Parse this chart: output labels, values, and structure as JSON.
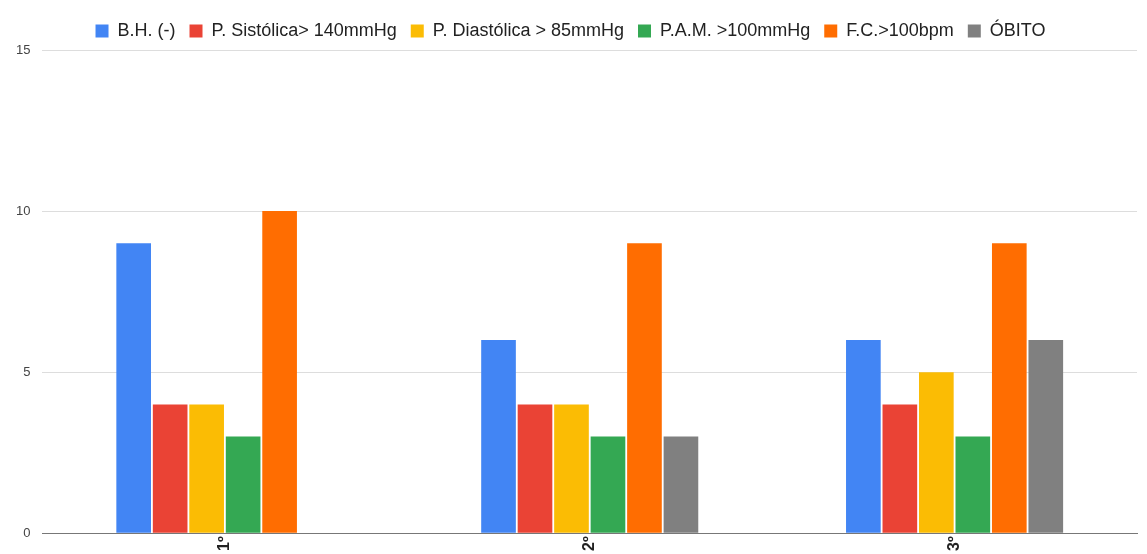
{
  "chart_data": {
    "type": "bar",
    "categories": [
      "1º",
      "2º",
      "3º"
    ],
    "series": [
      {
        "name": "B.H. (-)",
        "color": "#4285f4",
        "values": [
          9,
          6,
          6
        ]
      },
      {
        "name": "P. Sistólica> 140mmHg",
        "color": "#ea4335",
        "values": [
          4,
          4,
          4
        ]
      },
      {
        "name": "P. Diastólica > 85mmHg",
        "color": "#fbbc04",
        "values": [
          4,
          4,
          5
        ]
      },
      {
        "name": "P.A.M. >100mmHg",
        "color": "#34a853",
        "values": [
          3,
          3,
          3
        ]
      },
      {
        "name": "F.C.>100bpm",
        "color": "#ff6d01",
        "values": [
          10,
          9,
          9
        ]
      },
      {
        "name": "ÓBITO",
        "color": "#808080",
        "values": [
          0,
          3,
          6
        ]
      }
    ],
    "ylim": [
      0,
      15
    ],
    "yticks": [
      0,
      5,
      10,
      15
    ],
    "grid": "y",
    "legend": "top"
  }
}
